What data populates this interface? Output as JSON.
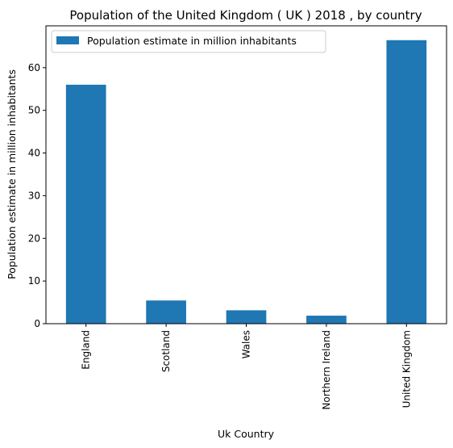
{
  "chart_data": {
    "type": "bar",
    "title": "Population of the United Kingdom ( UK ) 2018 , by country",
    "xlabel": "Uk Country",
    "ylabel": "Population estimate in million inhabitants",
    "categories": [
      "England",
      "Scotland",
      "Wales",
      "Northern Ireland",
      "United Kingdom"
    ],
    "series": [
      {
        "name": "Population estimate in million inhabitants",
        "values": [
          56.0,
          5.44,
          3.14,
          1.88,
          66.44
        ]
      }
    ],
    "ylim": [
      0,
      69.8
    ],
    "yticks": [
      0,
      10,
      20,
      30,
      40,
      50,
      60
    ],
    "grid": false,
    "legend_position": "top-left",
    "colors": {
      "bar": "#1f77b4"
    }
  }
}
